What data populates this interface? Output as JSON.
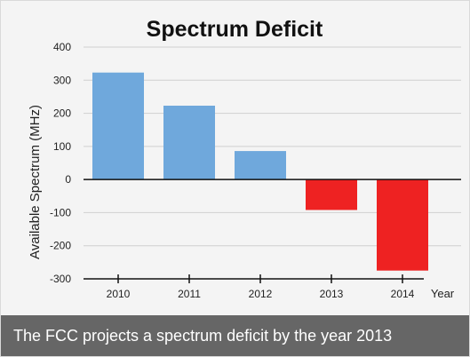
{
  "caption": "The FCC projects a spectrum deficit by the year 2013",
  "chart_data": {
    "type": "bar",
    "title": "Spectrum Deficit",
    "xlabel": "Year",
    "ylabel": "Available Spectrum (MHz)",
    "categories": [
      "2010",
      "2011",
      "2012",
      "2013",
      "2014"
    ],
    "values": [
      323,
      223,
      86,
      -92,
      -275
    ],
    "ylim": [
      -300,
      400
    ],
    "yticks": [
      400,
      300,
      200,
      100,
      0,
      -100,
      -200,
      -300
    ],
    "ytick_labels": [
      "400",
      "300",
      "200",
      "100",
      "0",
      "-100",
      "-200",
      "-300"
    ],
    "grid": true,
    "legend": "none",
    "colors": {
      "positive": "#6fa8dc",
      "negative": "#ee2222",
      "background": "#f4f4f4",
      "caption_bar": "#666666"
    }
  }
}
